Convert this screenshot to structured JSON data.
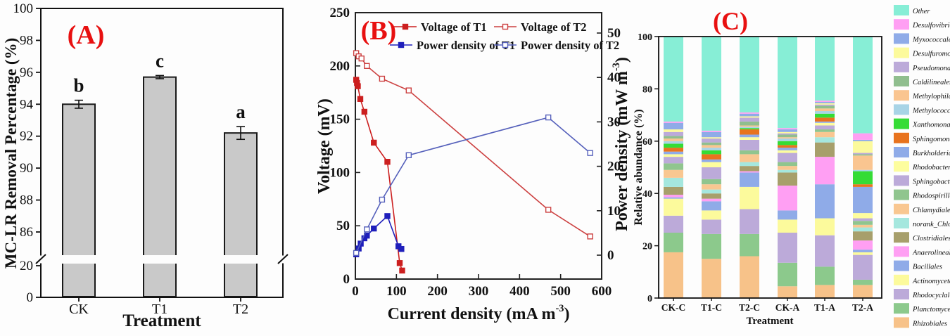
{
  "figure": {
    "panel_tags": [
      "(A)",
      "(B)",
      "(C)"
    ],
    "accent_red": "#e81010",
    "axis_color": "#111111"
  },
  "chart_data": [
    {
      "type": "bar",
      "panel": "(A)",
      "xlabel": "Treatment",
      "ylabel": "MC-LR Removal Percentage (%)",
      "categories": [
        "CK",
        "T1",
        "T2"
      ],
      "values": [
        94.0,
        95.7,
        92.2
      ],
      "errors": [
        0.25,
        0.1,
        0.4
      ],
      "sig_letters": [
        "b",
        "c",
        "a"
      ],
      "bar_color": "#c9c9c9",
      "bar_edge": "#1a1a1a",
      "y_axis_break": {
        "lower_range": [
          0,
          20
        ],
        "upper_range": [
          86,
          100
        ]
      },
      "yticks_lower": [
        0,
        20
      ],
      "yticks_upper": [
        86,
        88,
        90,
        92,
        94,
        96,
        98,
        100
      ],
      "grid": false
    },
    {
      "type": "line",
      "panel": "(B)",
      "xlabel": "Current density (mA m⁻³)",
      "ylabel_left": "Voltage (mV)",
      "ylabel_right": "Power density (mW m⁻³)",
      "xlim": [
        0,
        600
      ],
      "ylim_left": [
        0,
        250
      ],
      "ylim_right": [
        0,
        50
      ],
      "xticks": [
        0,
        100,
        200,
        300,
        400,
        500,
        600
      ],
      "yticks_left": [
        0,
        50,
        100,
        150,
        200,
        250
      ],
      "yticks_right": [
        0,
        10,
        20,
        30,
        40,
        50
      ],
      "legend_rows": [
        [
          "Voltage of T1",
          "Voltage of T2"
        ],
        [
          "Power density of T1",
          "Power density of T2"
        ]
      ],
      "series": [
        {
          "name": "Voltage of T1",
          "axis": "left",
          "color": "#cc1f1f",
          "marker": "filled-square",
          "points": [
            [
              2,
              187
            ],
            [
              4,
              184
            ],
            [
              6,
              181
            ],
            [
              12,
              169
            ],
            [
              22,
              157
            ],
            [
              45,
              128
            ],
            [
              78,
              110
            ],
            [
              108,
              15
            ],
            [
              114,
              8
            ]
          ]
        },
        {
          "name": "Voltage of T2",
          "axis": "left",
          "color": "#cc4040",
          "marker": "open-square",
          "points": [
            [
              2,
              212
            ],
            [
              8,
              209
            ],
            [
              15,
              207
            ],
            [
              28,
              200
            ],
            [
              65,
              188
            ],
            [
              130,
              177
            ],
            [
              470,
              65
            ],
            [
              572,
              40
            ]
          ]
        },
        {
          "name": "Power density of T1",
          "axis": "right",
          "color": "#1f1fbb",
          "marker": "filled-square",
          "points": [
            [
              2,
              0.2
            ],
            [
              8,
              1.5
            ],
            [
              13,
              2.6
            ],
            [
              22,
              3.8
            ],
            [
              28,
              4.4
            ],
            [
              45,
              6.0
            ],
            [
              78,
              8.8
            ],
            [
              105,
              2.0
            ],
            [
              112,
              1.4
            ]
          ]
        },
        {
          "name": "Power density of T2",
          "axis": "right",
          "color": "#5560bb",
          "marker": "open-square",
          "points": [
            [
              2,
              0.5
            ],
            [
              28,
              5.8
            ],
            [
              65,
              12.5
            ],
            [
              130,
              22.5
            ],
            [
              470,
              31.0
            ],
            [
              572,
              23.0
            ]
          ]
        }
      ],
      "grid": false
    },
    {
      "type": "stacked-bar",
      "panel": "(C)",
      "xlabel": "Treatment",
      "ylabel": "Relative abundance (%)",
      "ylim": [
        0,
        100
      ],
      "yticks": [
        0,
        20,
        40,
        60,
        80,
        100
      ],
      "categories": [
        "CK-C",
        "T1-C",
        "T2-C",
        "CK-A",
        "T1-A",
        "T2-A"
      ],
      "taxa": [
        {
          "name": "Other",
          "color": "#87eed6"
        },
        {
          "name": "Desulfovibrionales",
          "color": "#ff9ff3"
        },
        {
          "name": "Myxococcales",
          "color": "#8fabe8"
        },
        {
          "name": "Desulfuromonadales",
          "color": "#fcfa9c"
        },
        {
          "name": "Pseudomonadales",
          "color": "#bcaad9"
        },
        {
          "name": "Caldilineales",
          "color": "#90be8e"
        },
        {
          "name": "Methylophilales",
          "color": "#fac590"
        },
        {
          "name": "Methylococcales",
          "color": "#a8d4e6"
        },
        {
          "name": "Xanthomonadales",
          "color": "#35dc35"
        },
        {
          "name": "Sphingomonadales",
          "color": "#e8731e"
        },
        {
          "name": "Burkholderiales",
          "color": "#8fabe8"
        },
        {
          "name": "Rhodobacterales",
          "color": "#fdfd9e"
        },
        {
          "name": "Sphingobacteriales",
          "color": "#bcaad9"
        },
        {
          "name": "Rhodospirillales",
          "color": "#90c58e"
        },
        {
          "name": "Chlamydiales",
          "color": "#f9c791"
        },
        {
          "name": "norank_Chloroplast",
          "color": "#a5e7de"
        },
        {
          "name": "Clostridiales",
          "color": "#a79f6b"
        },
        {
          "name": "Anaerolineales",
          "color": "#ff9ff3"
        },
        {
          "name": "Bacillales",
          "color": "#8fabe8"
        },
        {
          "name": "Actinomycetales",
          "color": "#fcfa9c"
        },
        {
          "name": "Rhodocyclales",
          "color": "#bcaad9"
        },
        {
          "name": "Planctomycetales",
          "color": "#8cc98c"
        },
        {
          "name": "Rhizobiales",
          "color": "#f7c289"
        }
      ],
      "series": [
        {
          "category": "CK-C",
          "values": [
            32.5,
            0.5,
            2.5,
            1.0,
            1.5,
            1.0,
            1.0,
            1.0,
            1.5,
            1.5,
            1.0,
            1.0,
            2.5,
            2.5,
            3.0,
            3.5,
            3.0,
            1.0,
            0.5,
            6.5,
            6.5,
            7.5,
            17.5
          ]
        },
        {
          "category": "T1-C",
          "values": [
            36.0,
            0.5,
            2.0,
            0.5,
            1.5,
            1.0,
            1.0,
            1.0,
            1.5,
            2.0,
            1.0,
            2.0,
            4.5,
            2.0,
            2.0,
            1.5,
            2.0,
            1.0,
            3.5,
            3.5,
            5.5,
            9.5,
            15.0
          ]
        },
        {
          "category": "T2-C",
          "values": [
            29.0,
            0.5,
            1.0,
            0.5,
            1.5,
            1.5,
            0.5,
            0.5,
            0.5,
            2.0,
            1.0,
            1.0,
            4.0,
            1.5,
            3.0,
            1.5,
            2.0,
            0.5,
            5.5,
            8.5,
            9.5,
            8.5,
            16.0
          ]
        },
        {
          "category": "CK-A",
          "values": [
            35.0,
            0.5,
            1.0,
            0.5,
            0.5,
            1.0,
            0.5,
            1.0,
            1.5,
            1.0,
            1.0,
            1.0,
            3.5,
            1.5,
            1.5,
            1.0,
            5.0,
            9.5,
            3.5,
            5.0,
            11.5,
            9.0,
            4.5
          ]
        },
        {
          "category": "T1-A",
          "values": [
            24.5,
            0.5,
            0.5,
            0.5,
            0.5,
            1.0,
            1.0,
            1.0,
            1.5,
            1.5,
            0.5,
            1.0,
            1.5,
            1.0,
            2.0,
            2.0,
            5.5,
            10.5,
            13.0,
            6.5,
            12.0,
            7.0,
            5.0
          ]
        },
        {
          "category": "T2-A",
          "values": [
            37.0,
            2.5,
            0.5,
            4.5,
            0.5,
            0.5,
            5.5,
            0.5,
            5.0,
            1.0,
            10.0,
            2.0,
            1.0,
            1.5,
            1.0,
            1.5,
            3.5,
            3.5,
            1.0,
            1.0,
            9.5,
            2.0,
            5.0
          ]
        }
      ],
      "legend_position": "right",
      "grid": false
    }
  ]
}
